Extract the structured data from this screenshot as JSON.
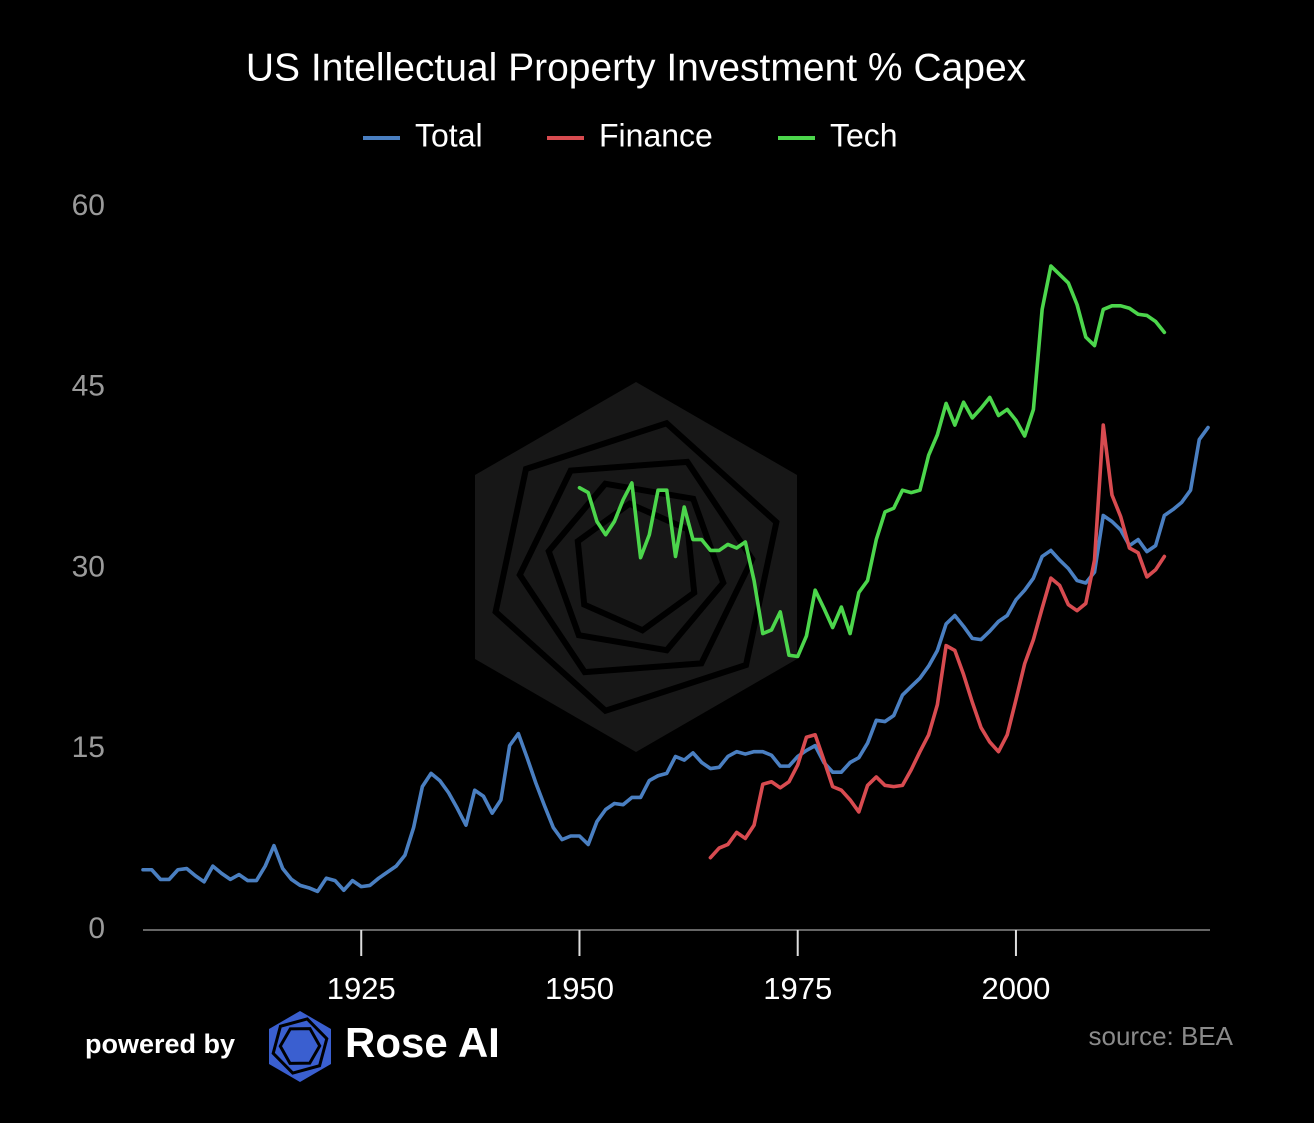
{
  "chart_data": {
    "type": "line",
    "title": "US Intellectual Property Investment % Capex",
    "source": "source: BEA",
    "branding": {
      "prefix": "powered by",
      "name": "Rose AI"
    },
    "xlim": [
      1900,
      2022
    ],
    "xticks": [
      1925,
      1950,
      1975,
      2000
    ],
    "ylim": [
      0,
      60
    ],
    "yticks": [
      0,
      15,
      30,
      45,
      60
    ],
    "x": [
      1900,
      1901,
      1902,
      1903,
      1904,
      1905,
      1906,
      1907,
      1908,
      1909,
      1910,
      1911,
      1912,
      1913,
      1914,
      1915,
      1916,
      1917,
      1918,
      1919,
      1920,
      1921,
      1922,
      1923,
      1924,
      1925,
      1926,
      1927,
      1928,
      1929,
      1930,
      1931,
      1932,
      1933,
      1934,
      1935,
      1936,
      1937,
      1938,
      1939,
      1940,
      1941,
      1942,
      1943,
      1944,
      1945,
      1946,
      1947,
      1948,
      1949,
      1950,
      1951,
      1952,
      1953,
      1954,
      1955,
      1956,
      1957,
      1958,
      1959,
      1960,
      1961,
      1962,
      1963,
      1964,
      1965,
      1966,
      1967,
      1968,
      1969,
      1970,
      1971,
      1972,
      1973,
      1974,
      1975,
      1976,
      1977,
      1978,
      1979,
      1980,
      1981,
      1982,
      1983,
      1984,
      1985,
      1986,
      1987,
      1988,
      1989,
      1990,
      1991,
      1992,
      1993,
      1994,
      1995,
      1996,
      1997,
      1998,
      1999,
      2000,
      2001,
      2002,
      2003,
      2004,
      2005,
      2006,
      2007,
      2008,
      2009,
      2010,
      2011,
      2012,
      2013,
      2014,
      2015,
      2016,
      2017,
      2018,
      2019,
      2020,
      2021,
      2022
    ],
    "series": [
      {
        "name": "Total",
        "color": "#4a7fc1",
        "values": [
          5.0,
          5.0,
          4.2,
          4.2,
          5.0,
          5.1,
          4.5,
          4.0,
          5.3,
          4.7,
          4.2,
          4.6,
          4.1,
          4.1,
          5.3,
          7.0,
          5.1,
          4.2,
          3.7,
          3.5,
          3.2,
          4.3,
          4.1,
          3.3,
          4.1,
          3.6,
          3.7,
          4.3,
          4.8,
          5.3,
          6.2,
          8.5,
          11.9,
          13.0,
          12.4,
          11.4,
          10.1,
          8.7,
          11.6,
          11.1,
          9.7,
          10.8,
          15.3,
          16.3,
          14.3,
          12.2,
          10.3,
          8.5,
          7.5,
          7.8,
          7.8,
          7.1,
          9.0,
          10.0,
          10.5,
          10.4,
          11.0,
          11.0,
          12.4,
          12.8,
          13.0,
          14.4,
          14.1,
          14.7,
          13.9,
          13.4,
          13.5,
          14.4,
          14.8,
          14.6,
          14.8,
          14.8,
          14.5,
          13.6,
          13.6,
          14.4,
          14.9,
          15.3,
          13.9,
          13.1,
          13.1,
          13.9,
          14.3,
          15.5,
          17.4,
          17.3,
          17.8,
          19.5,
          20.2,
          20.9,
          21.9,
          23.2,
          25.4,
          26.1,
          25.2,
          24.2,
          24.1,
          24.8,
          25.6,
          26.1,
          27.4,
          28.2,
          29.2,
          31.0,
          31.5,
          30.7,
          30.0,
          29.0,
          28.8,
          29.7,
          34.4,
          33.9,
          33.2,
          31.9,
          32.4,
          31.4,
          31.9,
          34.4,
          34.9,
          35.5,
          36.5,
          40.7,
          41.7
        ]
      },
      {
        "name": "Finance",
        "color": "#d84b50",
        "values": [
          null,
          null,
          null,
          null,
          null,
          null,
          null,
          null,
          null,
          null,
          null,
          null,
          null,
          null,
          null,
          null,
          null,
          null,
          null,
          null,
          null,
          null,
          null,
          null,
          null,
          null,
          null,
          null,
          null,
          null,
          null,
          null,
          null,
          null,
          null,
          null,
          null,
          null,
          null,
          null,
          null,
          null,
          null,
          null,
          null,
          null,
          null,
          null,
          null,
          null,
          null,
          null,
          null,
          null,
          null,
          null,
          null,
          null,
          null,
          null,
          null,
          null,
          null,
          null,
          null,
          6.0,
          6.8,
          7.1,
          8.1,
          7.6,
          8.7,
          12.1,
          12.3,
          11.8,
          12.3,
          13.7,
          16.0,
          16.2,
          14.1,
          11.9,
          11.6,
          10.8,
          9.8,
          12.0,
          12.7,
          12.0,
          11.9,
          12.0,
          13.3,
          14.8,
          16.2,
          18.7,
          23.6,
          23.2,
          21.2,
          18.9,
          16.8,
          15.6,
          14.8,
          16.2,
          19.1,
          22.1,
          24.1,
          26.7,
          29.2,
          28.6,
          27.0,
          26.5,
          27.1,
          30.7,
          41.9,
          36.1,
          34.3,
          31.7,
          31.3,
          29.3,
          29.9,
          31.0,
          null,
          null,
          null,
          null,
          null
        ]
      },
      {
        "name": "Tech",
        "color": "#4cd64c",
        "values": [
          null,
          null,
          null,
          null,
          null,
          null,
          null,
          null,
          null,
          null,
          null,
          null,
          null,
          null,
          null,
          null,
          null,
          null,
          null,
          null,
          null,
          null,
          null,
          null,
          null,
          null,
          null,
          null,
          null,
          null,
          null,
          null,
          null,
          null,
          null,
          null,
          null,
          null,
          null,
          null,
          null,
          null,
          null,
          null,
          null,
          null,
          null,
          null,
          null,
          null,
          36.7,
          36.3,
          33.9,
          32.8,
          33.9,
          35.7,
          37.1,
          30.9,
          32.8,
          36.5,
          36.5,
          31.0,
          35.1,
          32.4,
          32.4,
          31.5,
          31.5,
          32.0,
          31.7,
          32.2,
          29.0,
          24.6,
          24.9,
          26.4,
          22.8,
          22.7,
          24.4,
          28.2,
          26.7,
          25.1,
          26.8,
          24.6,
          28.0,
          29.0,
          32.4,
          34.7,
          35.0,
          36.5,
          36.3,
          36.5,
          39.4,
          41.1,
          43.7,
          41.9,
          43.8,
          42.5,
          43.3,
          44.2,
          42.7,
          43.2,
          42.3,
          41.0,
          43.2,
          51.5,
          55.1,
          54.4,
          53.7,
          51.9,
          49.2,
          48.5,
          51.5,
          51.8,
          51.8,
          51.6,
          51.1,
          51.0,
          50.5,
          49.6,
          null,
          null,
          null,
          null,
          null
        ]
      }
    ]
  }
}
